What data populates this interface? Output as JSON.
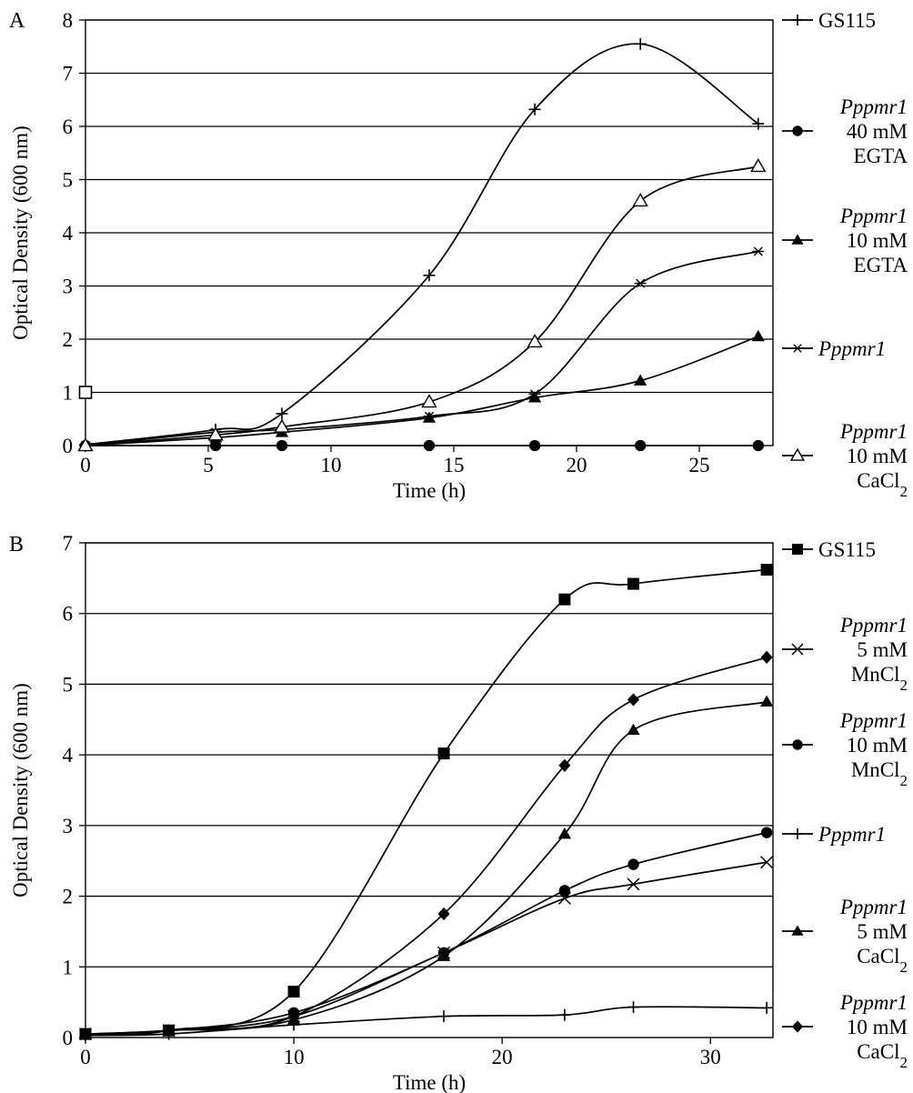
{
  "chart_data": [
    {
      "panel": "A",
      "type": "line",
      "xlabel": "Time (h)",
      "ylabel": "Optical Density (600 nm)",
      "xlim": [
        0,
        28
      ],
      "ylim": [
        0,
        8
      ],
      "xticks": [
        0,
        5,
        10,
        15,
        20,
        25
      ],
      "yticks": [
        0,
        1,
        2,
        3,
        4,
        5,
        6,
        7,
        8
      ],
      "grid": "horizontal",
      "legend_position": "right",
      "series": [
        {
          "key": "gs115",
          "marker": "plus",
          "x": [
            0,
            5.3,
            8,
            14,
            18.3,
            22.6,
            27.4
          ],
          "y": [
            0.02,
            0.3,
            0.6,
            3.2,
            6.32,
            7.55,
            6.05
          ]
        },
        {
          "key": "egta40",
          "marker": "circle",
          "x": [
            0,
            5.3,
            8,
            14,
            18.3,
            22.6,
            27.4
          ],
          "y": [
            0.0,
            0.0,
            0.0,
            0.0,
            0.0,
            0.0,
            0.0
          ]
        },
        {
          "key": "egta10",
          "marker": "triangle",
          "x": [
            0,
            5.3,
            8,
            14,
            18.3,
            22.6,
            27.4
          ],
          "y": [
            0.0,
            0.15,
            0.25,
            0.52,
            0.9,
            1.22,
            2.05
          ]
        },
        {
          "key": "pppmr1",
          "marker": "star",
          "x": [
            0,
            5.3,
            8,
            14,
            18.3,
            22.6,
            27.4
          ],
          "y": [
            0.0,
            0.25,
            0.3,
            0.55,
            0.97,
            3.05,
            3.65
          ]
        },
        {
          "key": "cacl10",
          "marker": "triangle-open",
          "x": [
            0,
            5.3,
            8,
            14,
            18.3,
            22.6,
            27.4
          ],
          "y": [
            0.0,
            0.2,
            0.35,
            0.82,
            1.95,
            4.6,
            5.25
          ]
        }
      ],
      "extra_point": {
        "x": 0,
        "y": 1.0,
        "marker": "square-open"
      },
      "legend": [
        {
          "key": "gs115",
          "lines": [
            "GS115"
          ],
          "italic": [
            false
          ]
        },
        {
          "key": "egta40",
          "lines": [
            "Pppmr1",
            "40 mM",
            "EGTA"
          ],
          "italic": [
            true,
            false,
            false
          ]
        },
        {
          "key": "egta10",
          "lines": [
            "Pppmr1",
            "10 mM",
            "EGTA"
          ],
          "italic": [
            true,
            false,
            false
          ]
        },
        {
          "key": "pppmr1",
          "lines": [
            "Pppmr1"
          ],
          "italic": [
            true
          ]
        },
        {
          "key": "cacl10",
          "lines": [
            "Pppmr1",
            "10 mM",
            "CaCl2"
          ],
          "italic": [
            true,
            false,
            false
          ]
        }
      ]
    },
    {
      "panel": "B",
      "type": "line",
      "xlabel": "Time (h)",
      "ylabel": "Optical Density (600 nm)",
      "xlim": [
        0,
        33
      ],
      "ylim": [
        0,
        7
      ],
      "xticks": [
        0,
        10,
        20,
        30
      ],
      "yticks": [
        0,
        1,
        2,
        3,
        4,
        5,
        6,
        7
      ],
      "grid": "horizontal",
      "legend_position": "right",
      "series": [
        {
          "key": "gs115",
          "marker": "square",
          "x": [
            0,
            4,
            10,
            17.2,
            23,
            26.3,
            32.7
          ],
          "y": [
            0.05,
            0.1,
            0.65,
            4.02,
            6.2,
            6.42,
            6.62
          ]
        },
        {
          "key": "mn5",
          "marker": "x",
          "x": [
            0,
            4,
            10,
            17.2,
            23,
            26.3,
            32.7
          ],
          "y": [
            0.05,
            0.1,
            0.3,
            1.2,
            1.97,
            2.17,
            2.48
          ]
        },
        {
          "key": "mn10",
          "marker": "circle",
          "x": [
            0,
            4,
            10,
            17.2,
            23,
            26.3,
            32.7
          ],
          "y": [
            0.05,
            0.1,
            0.35,
            1.2,
            2.08,
            2.45,
            2.9
          ]
        },
        {
          "key": "pppmr1",
          "marker": "plus",
          "x": [
            0,
            4,
            10,
            17.2,
            23,
            26.3,
            32.7
          ],
          "y": [
            0.03,
            0.05,
            0.18,
            0.3,
            0.32,
            0.43,
            0.42
          ]
        },
        {
          "key": "ca5",
          "marker": "triangle",
          "x": [
            0,
            4,
            10,
            17.2,
            23,
            26.3,
            32.7
          ],
          "y": [
            0.05,
            0.1,
            0.25,
            1.15,
            2.88,
            4.35,
            4.75
          ]
        },
        {
          "key": "ca10",
          "marker": "diamond",
          "x": [
            0,
            4,
            10,
            17.2,
            23,
            26.3,
            32.7
          ],
          "y": [
            0.05,
            0.1,
            0.3,
            1.75,
            3.85,
            4.78,
            5.38
          ]
        }
      ],
      "legend": [
        {
          "key": "gs115",
          "lines": [
            "GS115"
          ],
          "italic": [
            false
          ]
        },
        {
          "key": "mn5",
          "lines": [
            "Pppmr1",
            "5 mM",
            "MnCl2"
          ],
          "italic": [
            true,
            false,
            false
          ]
        },
        {
          "key": "mn10",
          "lines": [
            "Pppmr1",
            "10 mM",
            "MnCl2"
          ],
          "italic": [
            true,
            false,
            false
          ]
        },
        {
          "key": "pppmr1",
          "lines": [
            "Pppmr1"
          ],
          "italic": [
            true
          ]
        },
        {
          "key": "ca5",
          "lines": [
            "Pppmr1",
            "5 mM",
            "CaCl2"
          ],
          "italic": [
            true,
            false,
            false
          ]
        },
        {
          "key": "ca10",
          "lines": [
            "Pppmr1",
            "10 mM",
            "CaCl2"
          ],
          "italic": [
            true,
            false,
            false
          ]
        }
      ]
    }
  ]
}
